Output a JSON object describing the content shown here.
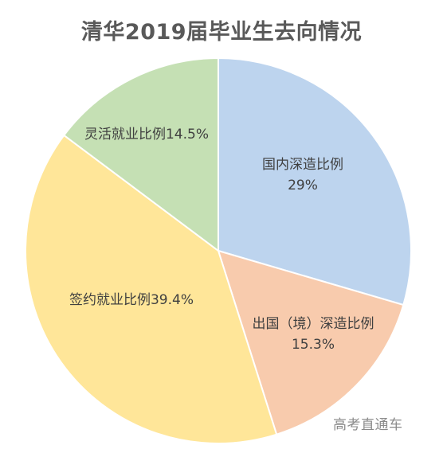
{
  "chart_data": {
    "type": "pie",
    "title": "清华2019届毕业生去向情况",
    "slices": [
      {
        "label": "国内深造比例",
        "value_label": "29%",
        "value": 29.0,
        "color": "#BDD4EE"
      },
      {
        "label": "出国（境）深造比例",
        "value_label": "15.3%",
        "value": 15.3,
        "color": "#F8CBAD"
      },
      {
        "label": "签约就业比例",
        "value_label": "39.4%",
        "value": 39.4,
        "color": "#FFE699"
      },
      {
        "label": "灵活就业比例",
        "value_label": "14.5%",
        "value": 14.5,
        "color": "#C5E0B4"
      }
    ],
    "start": "12 o'clock",
    "direction": "clockwise"
  },
  "watermark": "高考直通车"
}
